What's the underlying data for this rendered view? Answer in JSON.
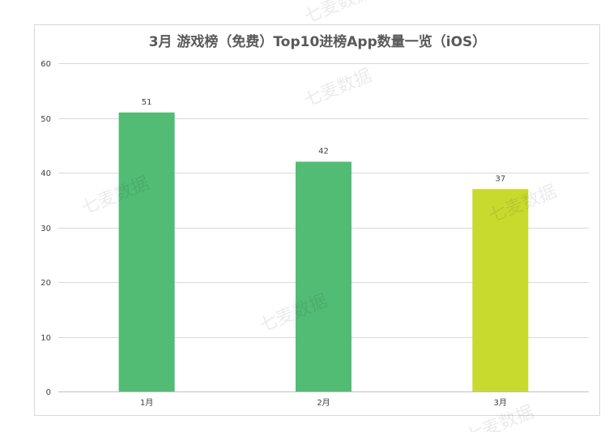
{
  "watermark": "七麦数据",
  "chart_data": {
    "type": "bar",
    "title": "3月 游戏榜（免费）Top10进榜App数量一览（iOS）",
    "xlabel": "",
    "ylabel": "",
    "categories": [
      "1月",
      "2月",
      "3月"
    ],
    "values": [
      51,
      42,
      37
    ],
    "data_labels": [
      "51",
      "42",
      "37"
    ],
    "bar_colors": [
      "#52bc75",
      "#52bc75",
      "#c9da2f"
    ],
    "ylim": [
      0,
      60
    ],
    "yticks": [
      "0",
      "10",
      "20",
      "30",
      "40",
      "50",
      "60"
    ],
    "ytick_values": [
      0,
      10,
      20,
      30,
      40,
      50,
      60
    ],
    "grid": true,
    "legend": "none"
  }
}
